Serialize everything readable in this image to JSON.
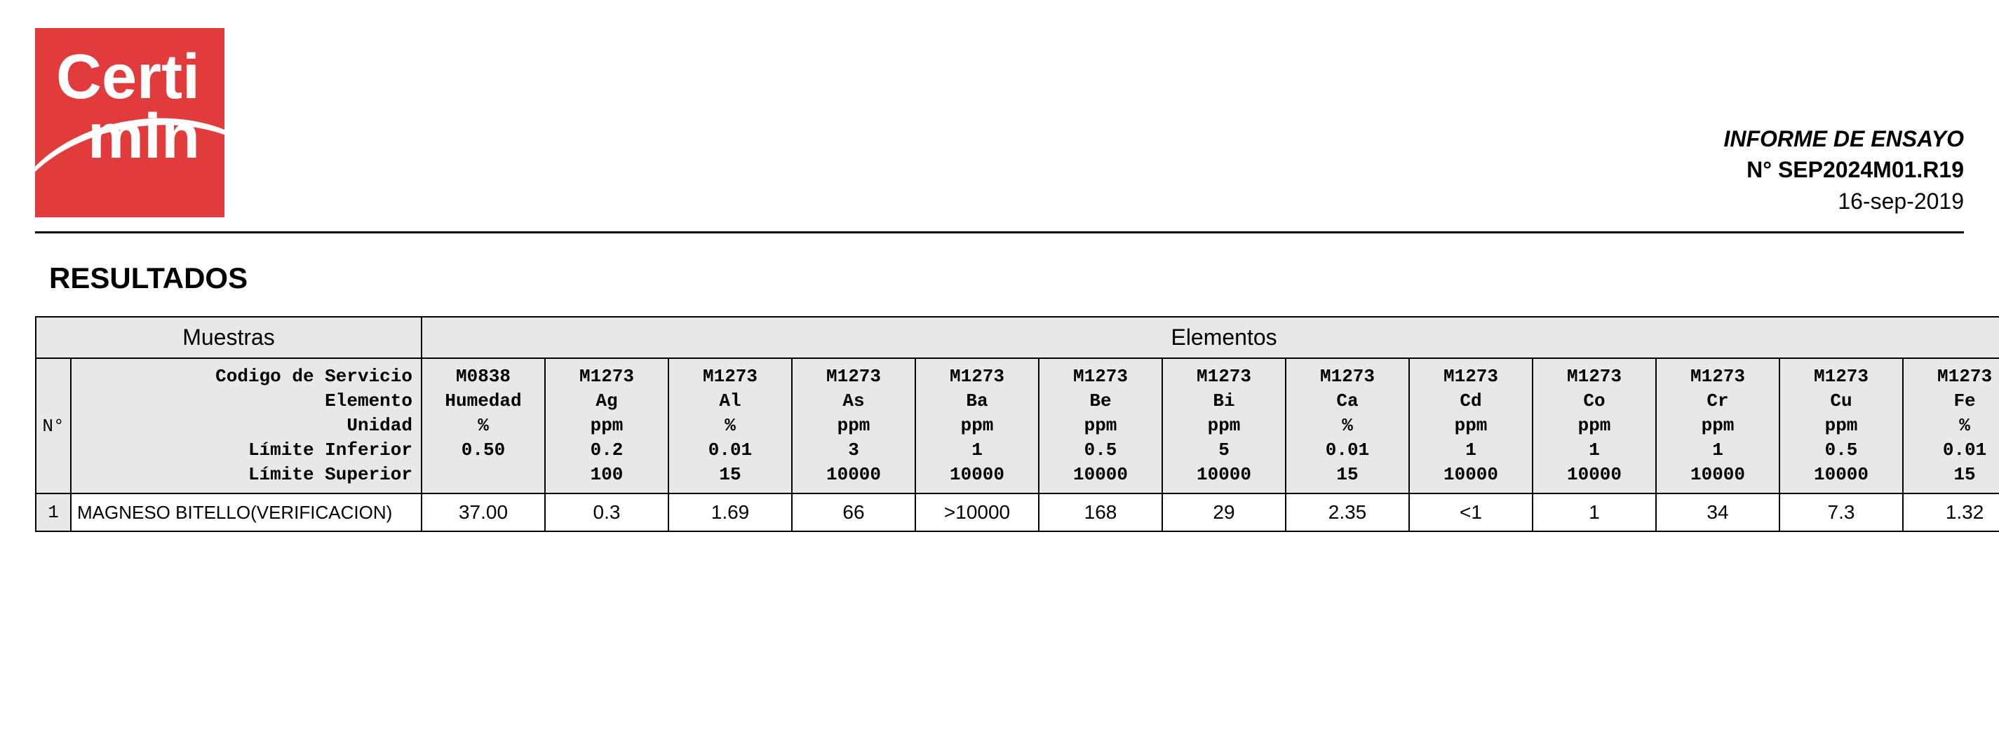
{
  "header": {
    "logo_top": "Certi",
    "logo_bot": "min",
    "report_title": "INFORME DE ENSAYO",
    "report_no_label": "N° SEP2024M01.R19",
    "report_date": "16-sep-2019"
  },
  "section": {
    "title": "RESULTADOS"
  },
  "table": {
    "group_samples": "Muestras",
    "group_elements": "Elementos",
    "rowNoHeader": "N°",
    "header_labels": [
      "Codigo de Servicio",
      "Elemento",
      "Unidad",
      "Límite Inferior",
      "Límite Superior"
    ],
    "columns": [
      {
        "code": "M0838",
        "element": "Humedad",
        "unit": "%",
        "lo": "0.50",
        "hi": ""
      },
      {
        "code": "M1273",
        "element": "Ag",
        "unit": "ppm",
        "lo": "0.2",
        "hi": "100"
      },
      {
        "code": "M1273",
        "element": "Al",
        "unit": "%",
        "lo": "0.01",
        "hi": "15"
      },
      {
        "code": "M1273",
        "element": "As",
        "unit": "ppm",
        "lo": "3",
        "hi": "10000"
      },
      {
        "code": "M1273",
        "element": "Ba",
        "unit": "ppm",
        "lo": "1",
        "hi": "10000"
      },
      {
        "code": "M1273",
        "element": "Be",
        "unit": "ppm",
        "lo": "0.5",
        "hi": "10000"
      },
      {
        "code": "M1273",
        "element": "Bi",
        "unit": "ppm",
        "lo": "5",
        "hi": "10000"
      },
      {
        "code": "M1273",
        "element": "Ca",
        "unit": "%",
        "lo": "0.01",
        "hi": "15"
      },
      {
        "code": "M1273",
        "element": "Cd",
        "unit": "ppm",
        "lo": "1",
        "hi": "10000"
      },
      {
        "code": "M1273",
        "element": "Co",
        "unit": "ppm",
        "lo": "1",
        "hi": "10000"
      },
      {
        "code": "M1273",
        "element": "Cr",
        "unit": "ppm",
        "lo": "1",
        "hi": "10000"
      },
      {
        "code": "M1273",
        "element": "Cu",
        "unit": "ppm",
        "lo": "0.5",
        "hi": "10000"
      },
      {
        "code": "M1273",
        "element": "Fe",
        "unit": "%",
        "lo": "0.01",
        "hi": "15"
      }
    ],
    "rows": [
      {
        "n": "1",
        "sample": "MAGNESO BITELLO(VERIFICACION)",
        "values": [
          "37.00",
          "0.3",
          "1.69",
          "66",
          ">10000",
          "168",
          "29",
          "2.35",
          "<1",
          "1",
          "34",
          "7.3",
          "1.32"
        ]
      }
    ]
  },
  "style": {
    "brand_color": "#e23b3b",
    "header_bg": "#e8e8e8",
    "border_color": "#000000",
    "mono_font": "Courier New"
  }
}
